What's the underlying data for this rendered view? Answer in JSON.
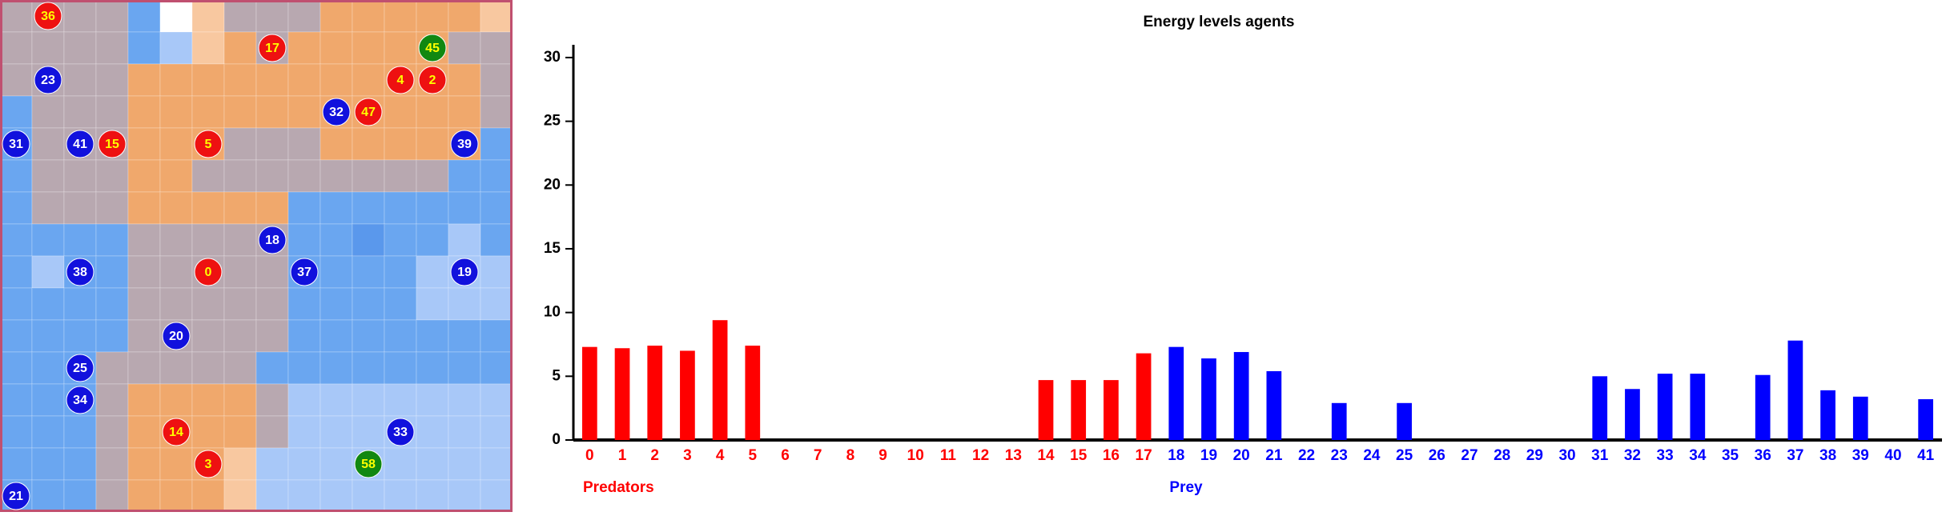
{
  "grid": {
    "palette": {
      "B": "#6aa6f0",
      "L": "#a8c8f8",
      "D": "#5a98ec",
      "G": "#b8a8b0",
      "O": "#f0a86c",
      "P": "#f8c8a0",
      "W": "#ffffff"
    },
    "rows": [
      "GGGGBWPGGGOOOOOP",
      "GGGGBLPOGOOOOOGG",
      "GGGGOOOOOOOOOOOG",
      "BGGGOOOOOOOOOOOG",
      "BGGGOOOGGGOOOOOB",
      "BGGGOOGGGGGGGGBB",
      "BGGGOOOOOBBBBBBB",
      "BBBBGGGGGBBDBBLB",
      "BLBBGGGGGBBBBLLL",
      "BBBBGGGGGBBBBLLL",
      "BBBBGGGGGBBBBBBB",
      "BBBGGGGGBBBBBBBB",
      "BBBGOOOOGLLLLLLL",
      "BBBGOOOOGLLLLLLL",
      "BBBGOOOPLLLLLLLL",
      "BBBGOOOPLLLLLLLL"
    ],
    "agents": [
      {
        "label": "36",
        "col": 1,
        "row": 0,
        "color": "#ee1111"
      },
      {
        "label": "17",
        "col": 8,
        "row": 1,
        "color": "#ee1111"
      },
      {
        "label": "45",
        "col": 13,
        "row": 1,
        "color": "#118811"
      },
      {
        "label": "23",
        "col": 1,
        "row": 2,
        "color": "#1111dd"
      },
      {
        "label": "4",
        "col": 12,
        "row": 2,
        "color": "#ee1111"
      },
      {
        "label": "2",
        "col": 13,
        "row": 2,
        "color": "#ee1111"
      },
      {
        "label": "32",
        "col": 10,
        "row": 3,
        "color": "#1111dd"
      },
      {
        "label": "47",
        "col": 11,
        "row": 3,
        "color": "#ee1111"
      },
      {
        "label": "31",
        "col": 0,
        "row": 4,
        "color": "#1111dd"
      },
      {
        "label": "41",
        "col": 2,
        "row": 4,
        "color": "#1111dd"
      },
      {
        "label": "15",
        "col": 3,
        "row": 4,
        "color": "#ee1111"
      },
      {
        "label": "5",
        "col": 6,
        "row": 4,
        "color": "#ee1111"
      },
      {
        "label": "39",
        "col": 14,
        "row": 4,
        "color": "#1111dd"
      },
      {
        "label": "18",
        "col": 8,
        "row": 7,
        "color": "#1111dd"
      },
      {
        "label": "38",
        "col": 2,
        "row": 8,
        "color": "#1111dd"
      },
      {
        "label": "0",
        "col": 6,
        "row": 8,
        "color": "#ee1111"
      },
      {
        "label": "37",
        "col": 9,
        "row": 8,
        "color": "#1111dd"
      },
      {
        "label": "19",
        "col": 14,
        "row": 8,
        "color": "#1111dd"
      },
      {
        "label": "20",
        "col": 5,
        "row": 10,
        "color": "#1111dd"
      },
      {
        "label": "25",
        "col": 2,
        "row": 11,
        "color": "#1111dd"
      },
      {
        "label": "34",
        "col": 2,
        "row": 12,
        "color": "#1111dd"
      },
      {
        "label": "14",
        "col": 5,
        "row": 13,
        "color": "#ee1111"
      },
      {
        "label": "33",
        "col": 12,
        "row": 13,
        "color": "#1111dd"
      },
      {
        "label": "3",
        "col": 6,
        "row": 14,
        "color": "#ee1111"
      },
      {
        "label": "58",
        "col": 11,
        "row": 14,
        "color": "#118811"
      },
      {
        "label": "21",
        "col": 0,
        "row": 15,
        "color": "#1111dd"
      }
    ]
  },
  "chart_data": {
    "type": "bar",
    "title": "Energy levels agents",
    "categories": [
      "0",
      "1",
      "2",
      "3",
      "4",
      "5",
      "6",
      "7",
      "8",
      "9",
      "10",
      "11",
      "12",
      "13",
      "14",
      "15",
      "16",
      "17",
      "18",
      "19",
      "20",
      "21",
      "22",
      "23",
      "24",
      "25",
      "26",
      "27",
      "28",
      "29",
      "30",
      "31",
      "32",
      "33",
      "34",
      "35",
      "36",
      "37",
      "38",
      "39",
      "40",
      "41"
    ],
    "series": [
      {
        "name": "Predators",
        "color": "#ff0000",
        "values": [
          7.3,
          7.2,
          7.4,
          7.0,
          9.4,
          7.4,
          0,
          0,
          0,
          0,
          0,
          0,
          0,
          0,
          4.7,
          4.7,
          4.7,
          6.8,
          null,
          null,
          null,
          null,
          null,
          null,
          null,
          null,
          null,
          null,
          null,
          null,
          null,
          null,
          null,
          null,
          null,
          null,
          null,
          null,
          null,
          null,
          null,
          null
        ]
      },
      {
        "name": "Prey",
        "color": "#0000ff",
        "values": [
          null,
          null,
          null,
          null,
          null,
          null,
          null,
          null,
          null,
          null,
          null,
          null,
          null,
          null,
          null,
          null,
          null,
          null,
          7.3,
          6.4,
          6.9,
          5.4,
          0,
          2.9,
          0,
          2.9,
          0,
          0,
          0,
          0,
          0,
          5.0,
          4.0,
          5.2,
          5.2,
          0,
          5.1,
          7.8,
          3.9,
          3.4,
          0,
          3.2
        ]
      }
    ],
    "ylim": [
      0,
      31
    ],
    "yticks": [
      0,
      5,
      10,
      15,
      20,
      25,
      30
    ]
  }
}
